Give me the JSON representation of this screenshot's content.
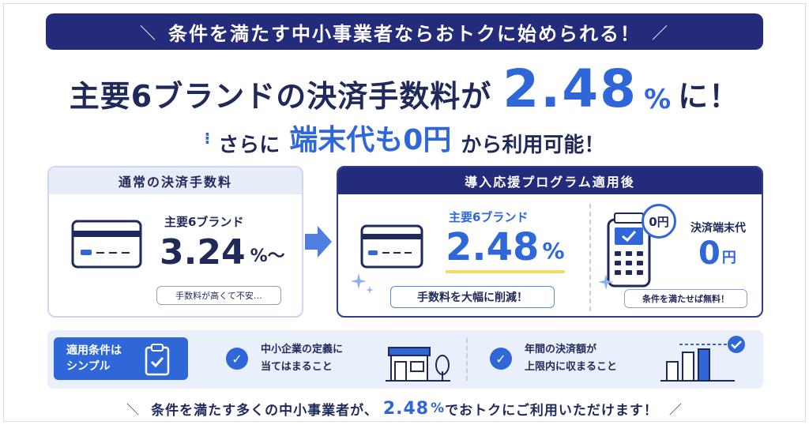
{
  "banner": {
    "text": "条件を満たす中小事業者ならおトクに始められる！",
    "deco_left": "＼",
    "deco_right": "／"
  },
  "headline": {
    "prefix": "主要6ブランドの決済手数料が",
    "rate": "2.48",
    "unit": "%",
    "suffix": "に！"
  },
  "subheadline": {
    "deco": "⁝",
    "prefix": "さらに",
    "highlight": "端末代も0円",
    "suffix": "から利用可能！"
  },
  "normal_card": {
    "header": "通常の決済手数料",
    "brand_label": "主要6ブランド",
    "rate": "3.24",
    "unit": "%〜",
    "note": "手数料が高くて不安…"
  },
  "program_card": {
    "header": "導入応援プログラム適用後",
    "brand_label": "主要6ブランド",
    "rate": "2.48",
    "unit": "%",
    "note": "手数料を大幅に削減！",
    "terminal_badge": "0円",
    "terminal_label": "決済端末代",
    "terminal_value": "0",
    "terminal_unit": "円",
    "terminal_note": "条件を満たせば無料！"
  },
  "conditions": {
    "tag_line1": "適用条件は",
    "tag_line2": "シンプル",
    "cond1_line1": "中小企業の定義に",
    "cond1_line2": "当てはまること",
    "cond2_line1": "年間の決済額が",
    "cond2_line2": "上限内に収まること"
  },
  "footer": {
    "prefix": "条件を満たす多くの中小事業者が、",
    "rate": "2.48",
    "unit": "%",
    "suffix": "でおトクにご利用いただけます！",
    "deco_left": "＼",
    "deco_right": "／"
  },
  "colors": {
    "navy": "#232b7a",
    "blue": "#2f67d8",
    "light": "#eaf0fb"
  }
}
